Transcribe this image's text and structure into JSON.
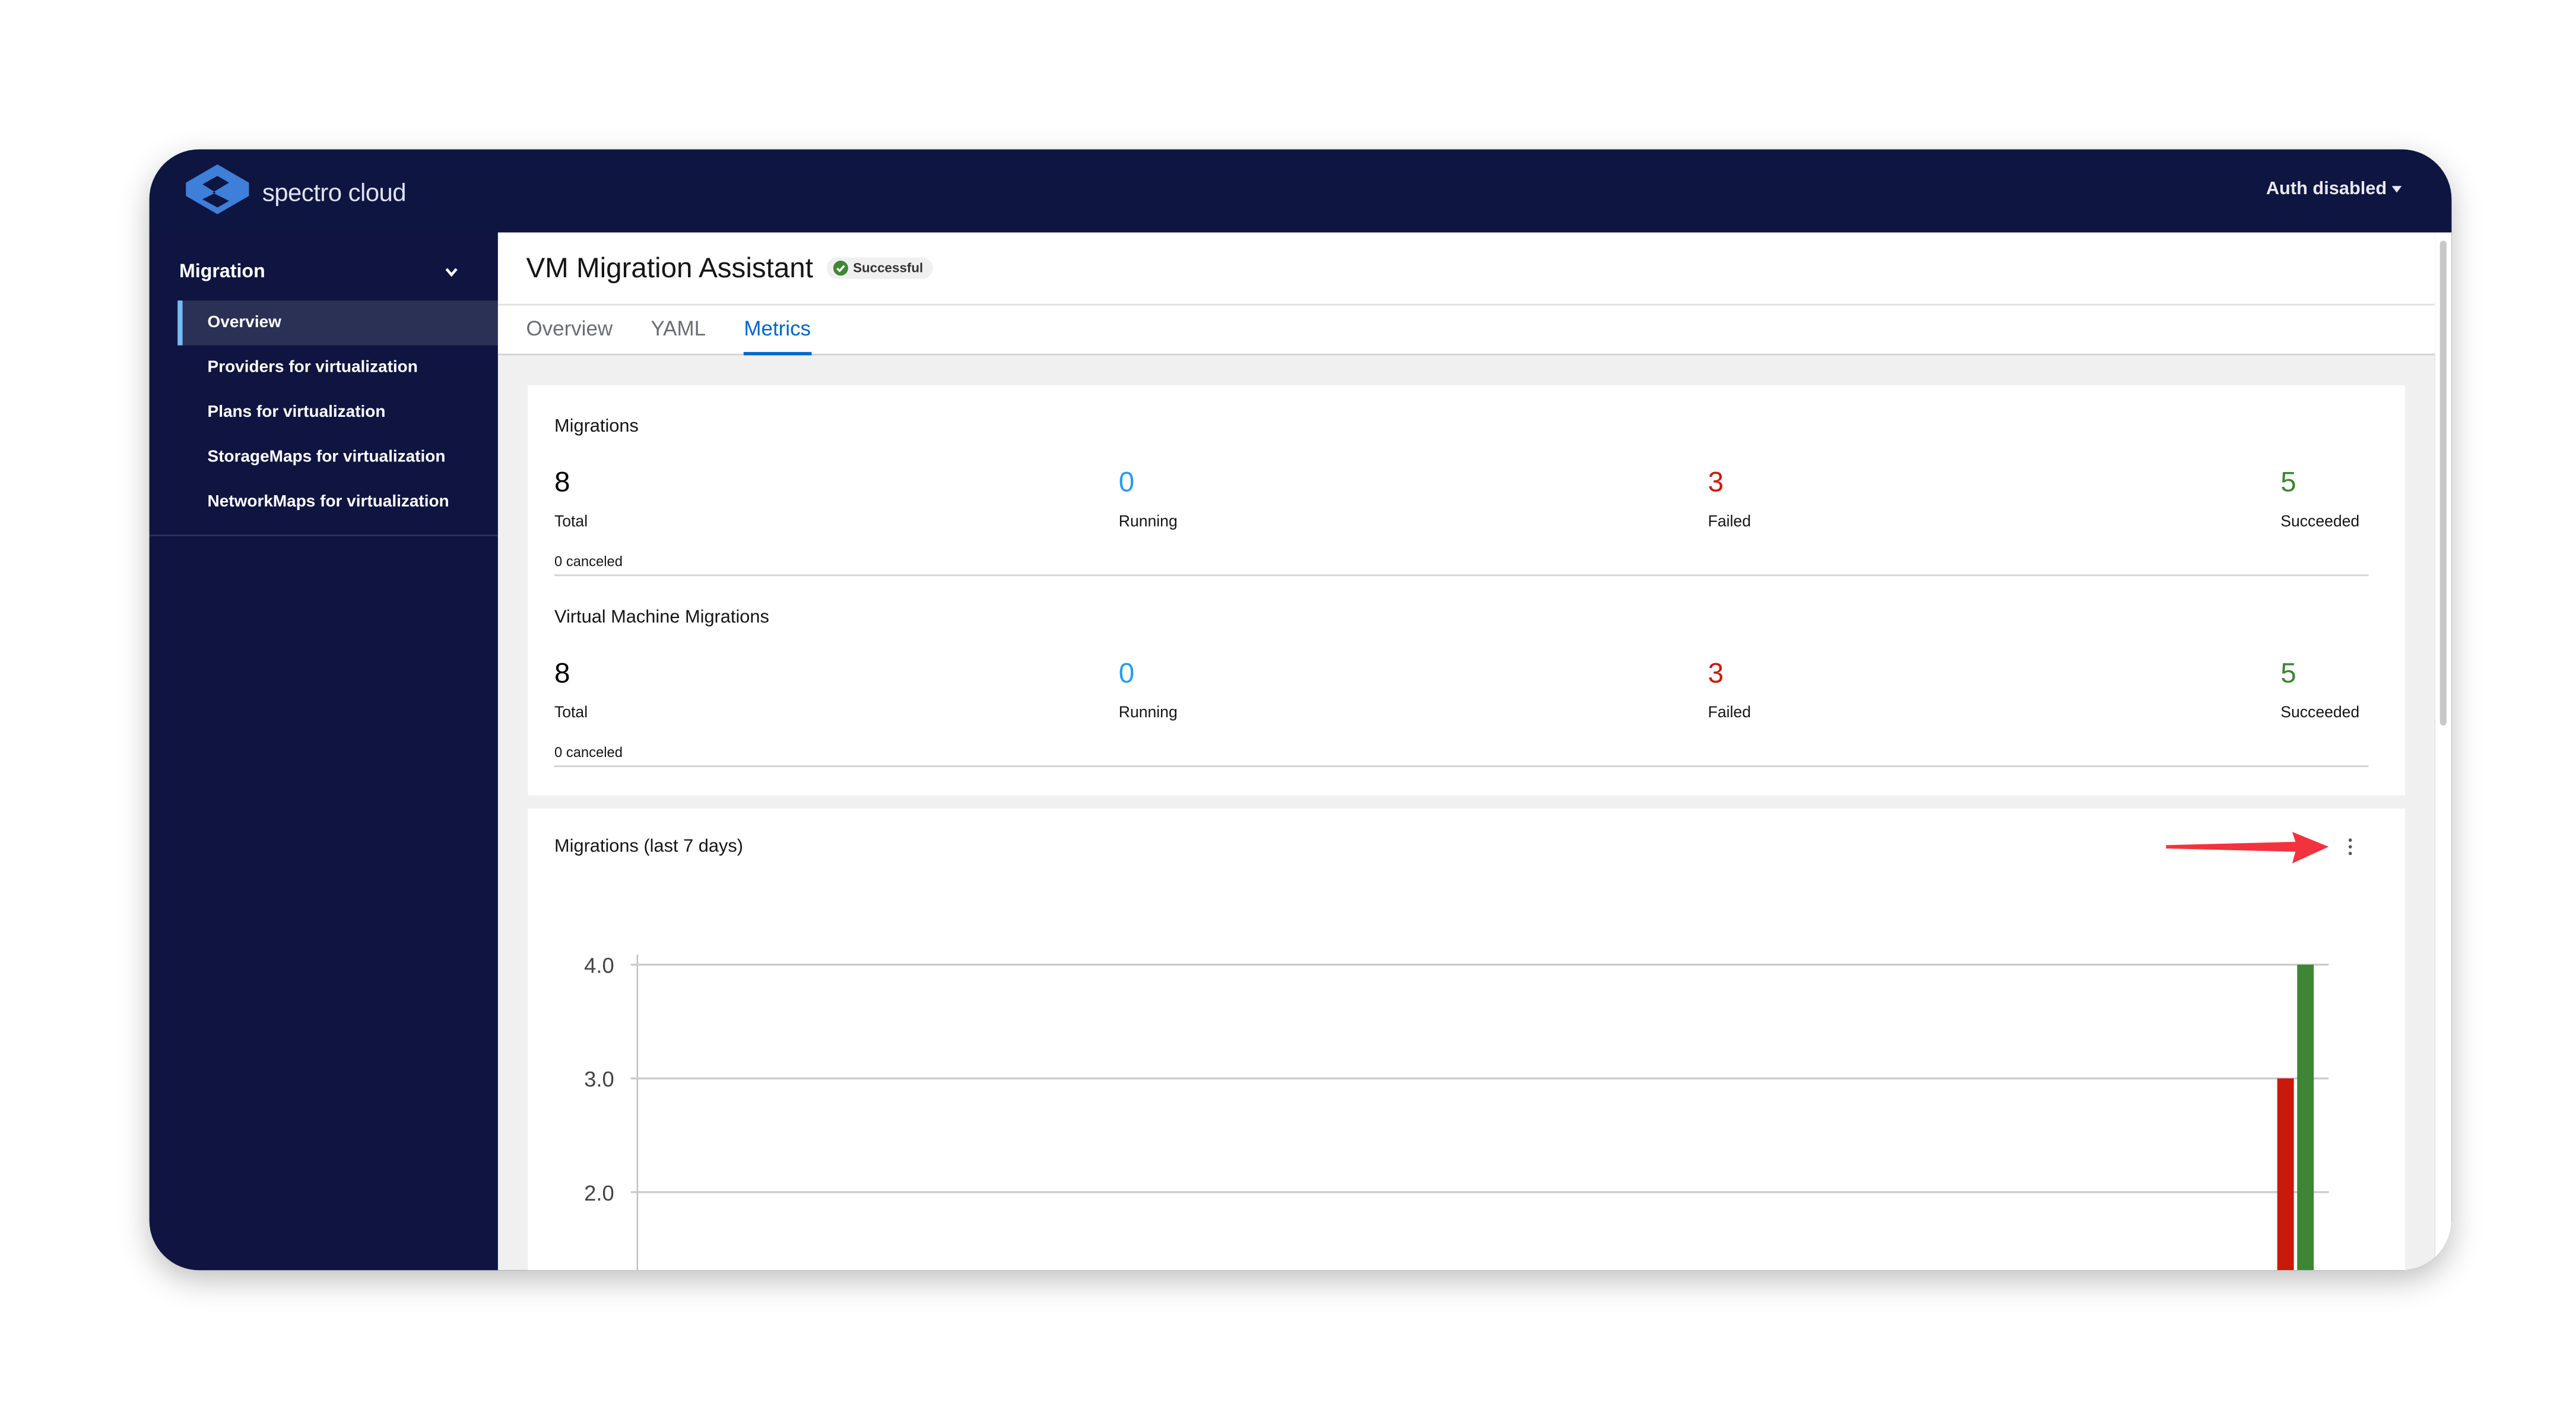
{
  "brand": {
    "name": "spectro cloud",
    "color": "#3d7fd9"
  },
  "header": {
    "auth_label": "Auth disabled"
  },
  "sidebar": {
    "group": "Migration",
    "items": [
      {
        "label": "Overview",
        "active": true
      },
      {
        "label": "Providers for virtualization"
      },
      {
        "label": "Plans for virtualization"
      },
      {
        "label": "StorageMaps for virtualization"
      },
      {
        "label": "NetworkMaps for virtualization"
      }
    ]
  },
  "page": {
    "title": "VM Migration Assistant",
    "status": "Successful",
    "tabs": [
      {
        "label": "Overview"
      },
      {
        "label": "YAML"
      },
      {
        "label": "Metrics",
        "active": true
      }
    ]
  },
  "sections": [
    {
      "title": "Migrations",
      "total": "8",
      "total_label": "Total",
      "canceled": "0 canceled",
      "running": "0",
      "running_label": "Running",
      "failed": "3",
      "failed_label": "Failed",
      "succeeded": "5",
      "succeeded_label": "Succeeded"
    },
    {
      "title": "Virtual Machine Migrations",
      "total": "8",
      "total_label": "Total",
      "canceled": "0 canceled",
      "running": "0",
      "running_label": "Running",
      "failed": "3",
      "failed_label": "Failed",
      "succeeded": "5",
      "succeeded_label": "Succeeded"
    }
  ],
  "colors": {
    "running": "#2b9af3",
    "failed": "#c9190b",
    "succeeded": "#3e8635",
    "header": "#0e1541",
    "accent": "#0066cc"
  },
  "chart_data": {
    "type": "bar",
    "title": "Migrations (last 7 days)",
    "yticks": [
      "4.0",
      "3.0",
      "2.0"
    ],
    "ylim_visible": [
      1.3,
      4.0
    ],
    "grid": true,
    "series": [
      {
        "values": [
          3
        ],
        "color": "#c9190b"
      },
      {
        "values": [
          4
        ],
        "color": "#3e8635"
      }
    ]
  }
}
